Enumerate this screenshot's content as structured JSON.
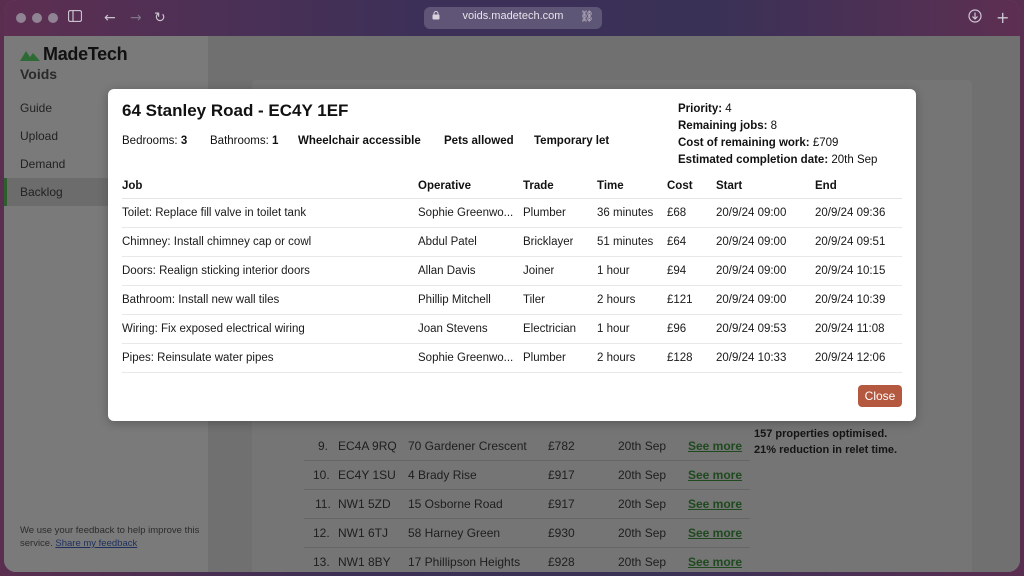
{
  "browser": {
    "url": "voids.madetech.com"
  },
  "sidebar": {
    "brand": "MadeTech",
    "app_title": "Voids",
    "items": [
      {
        "label": "Guide"
      },
      {
        "label": "Upload"
      },
      {
        "label": "Demand"
      },
      {
        "label": "Backlog"
      }
    ],
    "feedback_text": "We use your feedback to help improve this service.",
    "feedback_link": "Share my feedback"
  },
  "background_table": {
    "rows": [
      {
        "num": "9.",
        "postcode": "EC4A 9RQ",
        "address": "70 Gardener Crescent",
        "cost": "£782",
        "date": "20th Sep",
        "link": "See more"
      },
      {
        "num": "10.",
        "postcode": "EC4Y 1SU",
        "address": "4 Brady Rise",
        "cost": "£917",
        "date": "20th Sep",
        "link": "See more"
      },
      {
        "num": "11.",
        "postcode": "NW1 5ZD",
        "address": "15 Osborne Road",
        "cost": "£917",
        "date": "20th Sep",
        "link": "See more"
      },
      {
        "num": "12.",
        "postcode": "NW1 6TJ",
        "address": "58 Harney Green",
        "cost": "£930",
        "date": "20th Sep",
        "link": "See more"
      },
      {
        "num": "13.",
        "postcode": "NW1 8BY",
        "address": "17 Phillipson Heights",
        "cost": "£928",
        "date": "20th Sep",
        "link": "See more"
      }
    ],
    "summary_1": "157 properties optimised.",
    "summary_2": "21% reduction in relet time."
  },
  "modal": {
    "title": "64 Stanley Road - EC4Y 1EF",
    "bedrooms_label": "Bedrooms:",
    "bedrooms": "3",
    "bathrooms_label": "Bathrooms:",
    "bathrooms": "1",
    "features": [
      "Wheelchair accessible",
      "Pets allowed",
      "Temporary let"
    ],
    "stats": {
      "priority_label": "Priority:",
      "priority": "4",
      "remaining_label": "Remaining jobs:",
      "remaining": "8",
      "cost_label": "Cost of remaining work:",
      "cost": "£709",
      "completion_label": "Estimated completion date:",
      "completion": "20th Sep"
    },
    "columns": [
      "Job",
      "Operative",
      "Trade",
      "Time",
      "Cost",
      "Start",
      "End"
    ],
    "jobs": [
      {
        "job": "Toilet: Replace fill valve in toilet tank",
        "operative": "Sophie Greenwo...",
        "trade": "Plumber",
        "time": "36 minutes",
        "cost": "£68",
        "start": "20/9/24 09:00",
        "end": "20/9/24 09:36"
      },
      {
        "job": "Chimney: Install chimney cap or cowl",
        "operative": "Abdul Patel",
        "trade": "Bricklayer",
        "time": "51 minutes",
        "cost": "£64",
        "start": "20/9/24 09:00",
        "end": "20/9/24 09:51"
      },
      {
        "job": "Doors: Realign sticking interior doors",
        "operative": "Allan Davis",
        "trade": "Joiner",
        "time": "1 hour",
        "cost": "£94",
        "start": "20/9/24 09:00",
        "end": "20/9/24 10:15"
      },
      {
        "job": "Bathroom: Install new wall tiles",
        "operative": "Phillip Mitchell",
        "trade": "Tiler",
        "time": "2 hours",
        "cost": "£121",
        "start": "20/9/24 09:00",
        "end": "20/9/24 10:39"
      },
      {
        "job": "Wiring: Fix exposed electrical wiring",
        "operative": "Joan Stevens",
        "trade": "Electrician",
        "time": "1 hour",
        "cost": "£96",
        "start": "20/9/24 09:53",
        "end": "20/9/24 11:08"
      },
      {
        "job": "Pipes: Reinsulate water pipes",
        "operative": "Sophie Greenwo...",
        "trade": "Plumber",
        "time": "2 hours",
        "cost": "£128",
        "start": "20/9/24 10:33",
        "end": "20/9/24 12:06"
      }
    ],
    "close_label": "Close"
  },
  "colors": {
    "accent_button": "#b4593f",
    "link_green": "#1f4a1f",
    "active_nav_border": "#2e5d2e"
  }
}
